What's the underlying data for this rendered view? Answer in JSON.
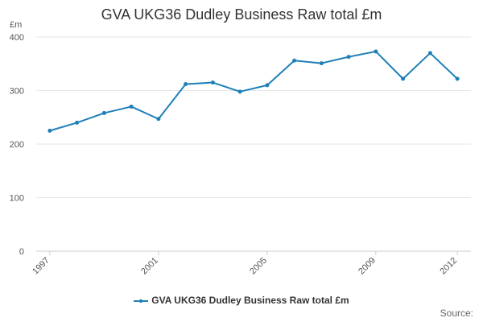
{
  "chart_data": {
    "type": "line",
    "title": "GVA UKG36 Dudley Business Raw total £m",
    "ylabel": "£m",
    "xlabel": "",
    "x": [
      1997,
      1998,
      1999,
      2000,
      2001,
      2002,
      2003,
      2004,
      2005,
      2006,
      2007,
      2008,
      2009,
      2010,
      2011,
      2012
    ],
    "x_tick_labels": [
      "1997",
      "2001",
      "2005",
      "2009",
      "2012"
    ],
    "y_ticks": [
      0,
      100,
      200,
      300,
      400
    ],
    "ylim": [
      0,
      400
    ],
    "series": [
      {
        "name": "GVA UKG36 Dudley Business Raw total £m",
        "color": "#1f7fb8",
        "values": [
          225,
          240,
          258,
          270,
          247,
          312,
          315,
          298,
          310,
          356,
          351,
          363,
          373,
          322,
          370,
          322
        ]
      }
    ],
    "grid": true,
    "legend_position": "bottom"
  },
  "footer": {
    "source": "Source:"
  }
}
